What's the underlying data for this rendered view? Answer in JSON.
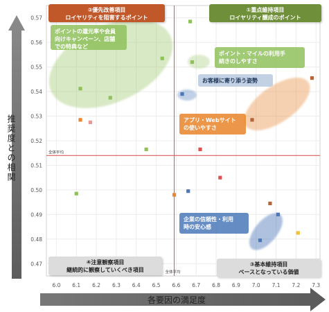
{
  "chart_data": {
    "type": "scatter",
    "title": "",
    "xlabel": "各要因の満足度",
    "ylabel": "推奨度との相関",
    "xlim": [
      5.95,
      7.32
    ],
    "ylim": [
      0.465,
      0.575
    ],
    "x_ticks": [
      "6.0",
      "6.1",
      "6.2",
      "6.3",
      "6.4",
      "6.5",
      "6.6",
      "6.7",
      "6.8",
      "6.9",
      "7.0",
      "7.1",
      "7.2",
      "7.3"
    ],
    "y_ticks": [
      "0.47",
      "0.48",
      "0.49",
      "0.50",
      "0.51",
      "0.52",
      "0.53",
      "0.54",
      "0.55",
      "0.56",
      "0.57"
    ],
    "avg_x": 6.59,
    "avg_y": 0.514,
    "avg_label_x": "全体平均",
    "avg_label_y": "全体平均",
    "grid": true,
    "quadrants": [
      {
        "id": "q2",
        "line1": "②優先改善項目",
        "line2": "ロイヤリティを阻害するポイント",
        "corner": "top-left",
        "color": "#c0582a"
      },
      {
        "id": "q1",
        "line1": "①重点維持項目",
        "line2": "ロイヤリティ醸成のポイント",
        "corner": "top-right",
        "color": "#6f8f3a"
      },
      {
        "id": "q4",
        "line1": "④注意観察項目",
        "line2": "継続的に観察していくべき項目",
        "corner": "bottom-left",
        "color": "#dcdcdc"
      },
      {
        "id": "q3",
        "line1": "③基本維持項目",
        "line2": "ベースとなっている価値",
        "corner": "bottom-right",
        "color": "#dcdcdc"
      }
    ],
    "points": [
      {
        "x": 6.67,
        "y": 0.5685,
        "color": "#8fc15a"
      },
      {
        "x": 6.53,
        "y": 0.5535,
        "color": "#8fc15a"
      },
      {
        "x": 6.68,
        "y": 0.552,
        "color": "#8fc15a"
      },
      {
        "x": 6.12,
        "y": 0.5412,
        "color": "#8fc15a"
      },
      {
        "x": 6.17,
        "y": 0.5275,
        "color": "#e79a9a"
      },
      {
        "x": 6.27,
        "y": 0.5375,
        "color": "#8fc15a"
      },
      {
        "x": 6.12,
        "y": 0.5285,
        "color": "#e8872f"
      },
      {
        "x": 6.45,
        "y": 0.5165,
        "color": "#8fc15a"
      },
      {
        "x": 6.72,
        "y": 0.5165,
        "color": "#e05050"
      },
      {
        "x": 6.63,
        "y": 0.539,
        "color": "#4a78b8"
      },
      {
        "x": 7.28,
        "y": 0.5455,
        "color": "#b5653a"
      },
      {
        "x": 6.98,
        "y": 0.5285,
        "color": "#b5653a"
      },
      {
        "x": 6.1,
        "y": 0.4985,
        "color": "#8fc15a"
      },
      {
        "x": 6.59,
        "y": 0.498,
        "color": "#e8872f"
      },
      {
        "x": 6.66,
        "y": 0.4995,
        "color": "#4a78b8"
      },
      {
        "x": 6.82,
        "y": 0.505,
        "color": "#e05050"
      },
      {
        "x": 7.07,
        "y": 0.4945,
        "color": "#b5653a"
      },
      {
        "x": 7.11,
        "y": 0.49,
        "color": "#4a78b8"
      },
      {
        "x": 7.21,
        "y": 0.4825,
        "color": "#f0c040"
      },
      {
        "x": 7.02,
        "y": 0.4795,
        "color": "#4a78b8"
      }
    ],
    "annotations": [
      {
        "id": "a1",
        "lines": [
          "ポイントの還元率や会員",
          "向けキャンペーン、店舗",
          "での特典など"
        ],
        "color": "#8fc15a"
      },
      {
        "id": "a2",
        "lines": [
          "ポイント・マイルの利用手",
          "続きのしやすさ"
        ],
        "color": "#8fc15a"
      },
      {
        "id": "a3",
        "lines": [
          "お客様に寄り添う姿勢"
        ],
        "color": "#4a78b8"
      },
      {
        "id": "a4",
        "lines": [
          "アプリ・Webサイト",
          "の使いやすさ"
        ],
        "color": "#e8872f"
      },
      {
        "id": "a5",
        "lines": [
          "企業の信頼性・利用",
          "時の安心感"
        ],
        "color": "#4a78b8"
      }
    ]
  }
}
